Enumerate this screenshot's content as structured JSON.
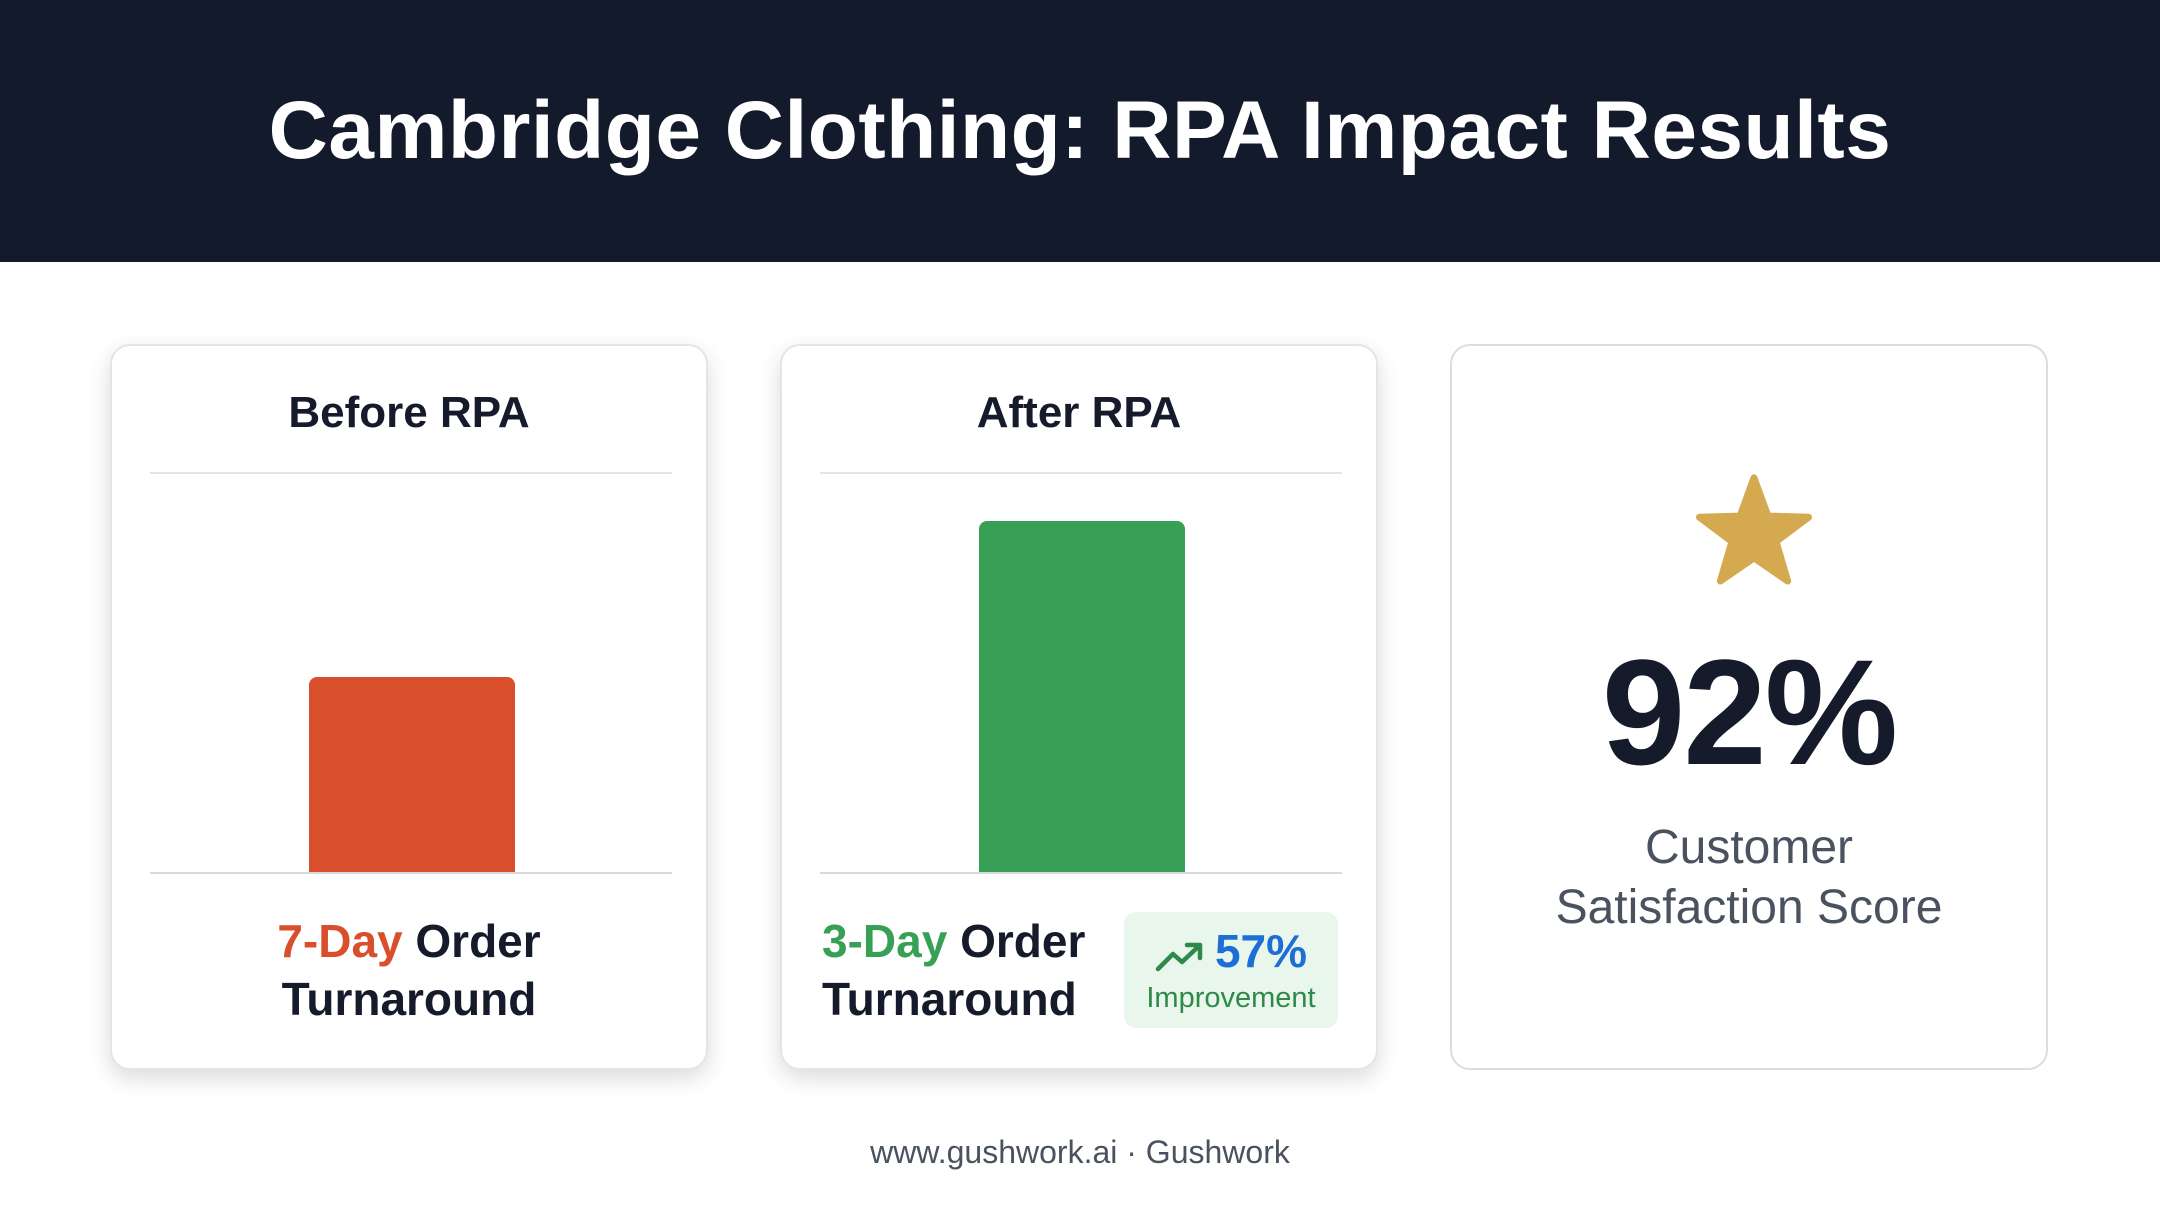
{
  "header": {
    "title": "Cambridge Clothing: RPA Impact Results"
  },
  "before_card": {
    "title": "Before RPA",
    "metric_highlight": "7-Day",
    "metric_rest_line1": "Order",
    "metric_line2": "Turnaround",
    "highlight_color": "#d94f2b"
  },
  "after_card": {
    "title": "After RPA",
    "metric_highlight": "3-Day",
    "metric_rest_line1": "Order",
    "metric_line2": "Turnaround",
    "highlight_color": "#38a055",
    "badge": {
      "icon": "trending-up-icon",
      "value": "57%",
      "label": "Improvement"
    }
  },
  "satisfaction_card": {
    "icon": "star-icon",
    "value": "92%",
    "label_line1": "Customer",
    "label_line2": "Satisfaction Score",
    "star_color": "#d4a94f"
  },
  "chart_data": [
    {
      "type": "bar",
      "title": "Before RPA",
      "categories": [
        "Before RPA"
      ],
      "values": [
        0.5
      ],
      "color": "#d94f2b"
    },
    {
      "type": "bar",
      "title": "After RPA",
      "categories": [
        "After RPA"
      ],
      "values": [
        0.9
      ],
      "color": "#38a055"
    }
  ],
  "footer": {
    "text": "www.gushwork.ai · Gushwork"
  }
}
